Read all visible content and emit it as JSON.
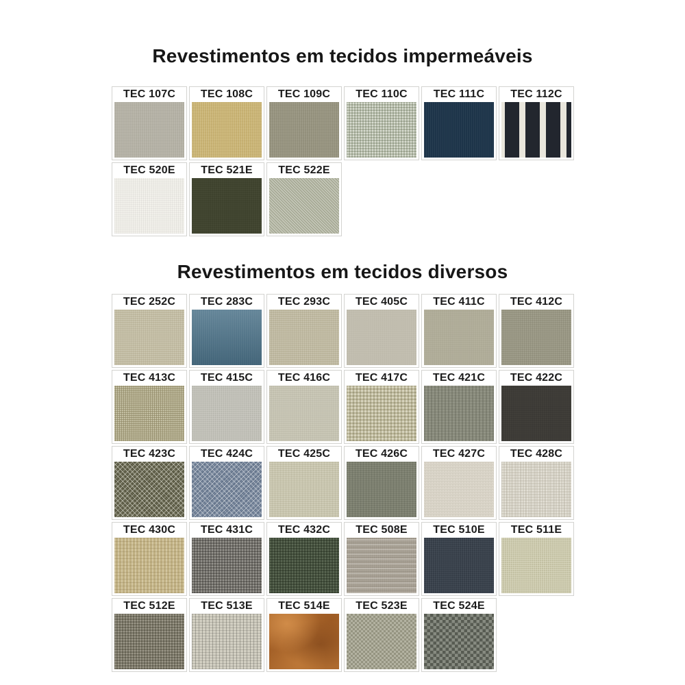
{
  "page": {
    "background": "#ffffff",
    "title_color": "#171717",
    "label_color": "#1b1b1b",
    "cell_border_color": "#d3d3d0"
  },
  "sections": [
    {
      "title": "Revestimentos em tecidos impermeáveis",
      "rows": [
        [
          {
            "code": "TEC 107C",
            "texture": "t107c",
            "color": "#b3b0a4"
          },
          {
            "code": "TEC 108C",
            "texture": "t108c",
            "color": "#c8b273"
          },
          {
            "code": "TEC 109C",
            "texture": "t109c",
            "color": "#95927e"
          },
          {
            "code": "TEC 110C",
            "texture": "t110c",
            "color": "#b5bca9"
          },
          {
            "code": "TEC 111C",
            "texture": "t111c",
            "color": "#1d3449"
          },
          {
            "code": "TEC 112C",
            "texture": "t112c",
            "color": "#22262e"
          }
        ],
        [
          {
            "code": "TEC 520E",
            "texture": "t520e",
            "color": "#f2f1eb"
          },
          {
            "code": "TEC 521E",
            "texture": "t521e",
            "color": "#3c402b"
          },
          {
            "code": "TEC 522E",
            "texture": "t522e",
            "color": "#b2b5a1"
          }
        ]
      ]
    },
    {
      "title": "Revestimentos em tecidos diversos",
      "rows": [
        [
          {
            "code": "TEC 252C",
            "texture": "t252c",
            "color": "#c2bca3"
          },
          {
            "code": "TEC 283C",
            "texture": "t283c",
            "color": "#53788d"
          },
          {
            "code": "TEC 293C",
            "texture": "t293c",
            "color": "#bfb9a1"
          },
          {
            "code": "TEC 405C",
            "texture": "t405c",
            "color": "#c5c1b3"
          },
          {
            "code": "TEC 411C",
            "texture": "t411c",
            "color": "#aba894"
          },
          {
            "code": "TEC 412C",
            "texture": "t412c",
            "color": "#999784"
          }
        ],
        [
          {
            "code": "TEC 413C",
            "texture": "t413c",
            "color": "#b1aa86"
          },
          {
            "code": "TEC 415C",
            "texture": "t415c",
            "color": "#cbcac2"
          },
          {
            "code": "TEC 416C",
            "texture": "t416c",
            "color": "#c5c3b2"
          },
          {
            "code": "TEC 417C",
            "texture": "t417c",
            "color": "#bfba9d"
          },
          {
            "code": "TEC 421C",
            "texture": "t421c",
            "color": "#8a8c7d"
          },
          {
            "code": "TEC 422C",
            "texture": "t422c",
            "color": "#393733"
          }
        ],
        [
          {
            "code": "TEC 423C",
            "texture": "t423c",
            "color": "#66654e"
          },
          {
            "code": "TEC 424C",
            "texture": "t424c",
            "color": "#74849a"
          },
          {
            "code": "TEC 425C",
            "texture": "t425c",
            "color": "#c7c4ad"
          },
          {
            "code": "TEC 426C",
            "texture": "t426c",
            "color": "#7c7f6f"
          },
          {
            "code": "TEC 427C",
            "texture": "t427c",
            "color": "#dcd7cb"
          },
          {
            "code": "TEC 428C",
            "texture": "t428c",
            "color": "#d5d1c5"
          }
        ],
        [
          {
            "code": "TEC 430C",
            "texture": "t430c",
            "color": "#c0b083"
          },
          {
            "code": "TEC 431C",
            "texture": "t431c",
            "color": "#72706a"
          },
          {
            "code": "TEC 432C",
            "texture": "t432c",
            "color": "#44503d"
          },
          {
            "code": "TEC 508E",
            "texture": "t508e",
            "color": "#afa89c"
          },
          {
            "code": "TEC 510E",
            "texture": "t510e",
            "color": "#353d47"
          },
          {
            "code": "TEC 511E",
            "texture": "t511e",
            "color": "#c8c6a7"
          }
        ],
        [
          {
            "code": "TEC 512E",
            "texture": "t512e",
            "color": "#7d7969"
          },
          {
            "code": "TEC 513E",
            "texture": "t513e",
            "color": "#d2cfc2"
          },
          {
            "code": "TEC 514E",
            "texture": "t514e",
            "color": "#ad6a2e"
          },
          {
            "code": "TEC 523E",
            "texture": "t523e",
            "color": "#a2a18d"
          },
          {
            "code": "TEC 524E",
            "texture": "t524e",
            "color": "#6c7065"
          }
        ]
      ]
    }
  ]
}
